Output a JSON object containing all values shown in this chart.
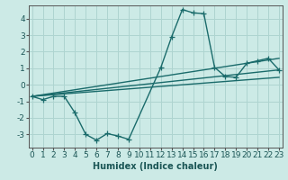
{
  "title": "",
  "xlabel": "Humidex (Indice chaleur)",
  "ylabel": "",
  "background_color": "#cceae6",
  "grid_color": "#aed4d0",
  "line_color": "#1a6b6b",
  "x_ticks": [
    0,
    1,
    2,
    3,
    4,
    5,
    6,
    7,
    8,
    9,
    10,
    11,
    12,
    13,
    14,
    15,
    16,
    17,
    18,
    19,
    20,
    21,
    22,
    23
  ],
  "y_ticks": [
    -3,
    -2,
    -1,
    0,
    1,
    2,
    3,
    4
  ],
  "xlim": [
    -0.3,
    23.3
  ],
  "ylim": [
    -3.8,
    4.8
  ],
  "series1_x": [
    0,
    1,
    2,
    3,
    4,
    5,
    6,
    7,
    8,
    9,
    12,
    13,
    14,
    15,
    16,
    17,
    18,
    19,
    20,
    21,
    22,
    23
  ],
  "series1_y": [
    -0.7,
    -0.9,
    -0.7,
    -0.7,
    -1.7,
    -3.0,
    -3.35,
    -2.95,
    -3.1,
    -3.3,
    1.05,
    2.9,
    4.55,
    4.35,
    4.3,
    1.05,
    0.5,
    0.45,
    1.3,
    1.45,
    1.6,
    0.9
  ],
  "series2_x": [
    0,
    23
  ],
  "series2_y": [
    -0.7,
    1.6
  ],
  "series3_x": [
    0,
    23
  ],
  "series3_y": [
    -0.7,
    0.45
  ],
  "series4_x": [
    0,
    23
  ],
  "series4_y": [
    -0.7,
    0.9
  ],
  "marker_size": 4,
  "line_width": 1.0,
  "xlabel_fontsize": 7,
  "tick_fontsize": 6.5
}
